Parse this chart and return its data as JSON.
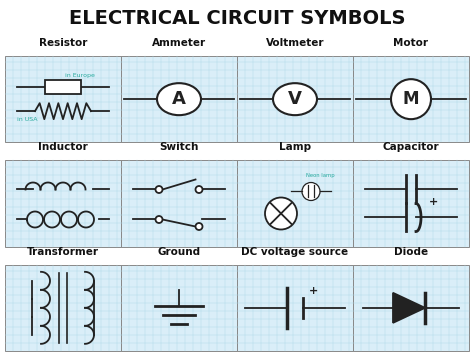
{
  "title": "ELECTRICAL CIRCUIT SYMBOLS",
  "title_fontsize": 14,
  "title_fontweight": "bold",
  "bg_color": "#ffffff",
  "grid_color": "#add8e6",
  "cell_bg": "#daeef8",
  "line_color": "#222222",
  "label_color": "#111111",
  "accent_color": "#2aab9f",
  "rows": [
    [
      "Resistor",
      "Ammeter",
      "Voltmeter",
      "Motor"
    ],
    [
      "Inductor",
      "Switch",
      "Lamp",
      "Capacitor"
    ],
    [
      "Transformer",
      "Ground",
      "DC voltage source",
      "Diode"
    ]
  ],
  "label_fontsize": 7.5,
  "label_fontweight": "bold",
  "ncols": 4,
  "nrows": 3
}
